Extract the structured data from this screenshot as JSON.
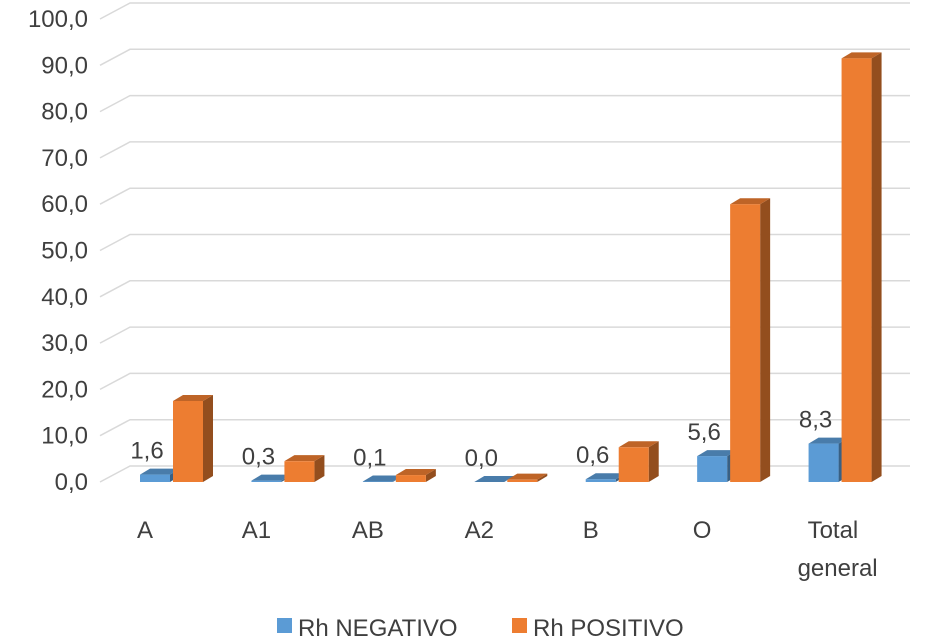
{
  "chart_data": {
    "type": "bar",
    "title": "",
    "xlabel": "",
    "ylabel": "",
    "ylim": [
      0,
      100
    ],
    "yticks": [
      "0,0",
      "10,0",
      "20,0",
      "30,0",
      "40,0",
      "50,0",
      "60,0",
      "70,0",
      "80,0",
      "90,0",
      "100,0"
    ],
    "categories": [
      "A",
      "A1",
      "AB",
      "A2",
      "B",
      "O",
      "Total general"
    ],
    "series": [
      {
        "name": "Rh NEGATIVO",
        "color": "#5b9bd5",
        "values": [
          1.6,
          0.3,
          0.1,
          0.0,
          0.6,
          5.6,
          8.3
        ],
        "labels": [
          "1,6",
          "0,3",
          "0,1",
          "0,0",
          "0,6",
          "5,6",
          "8,3"
        ]
      },
      {
        "name": "Rh POSITIVO",
        "color": "#ed7d31",
        "values": [
          17.5,
          4.5,
          1.5,
          0.5,
          7.5,
          60.0,
          91.5
        ]
      }
    ],
    "grid": true,
    "legend": "bottom",
    "style": "3d-columns"
  }
}
